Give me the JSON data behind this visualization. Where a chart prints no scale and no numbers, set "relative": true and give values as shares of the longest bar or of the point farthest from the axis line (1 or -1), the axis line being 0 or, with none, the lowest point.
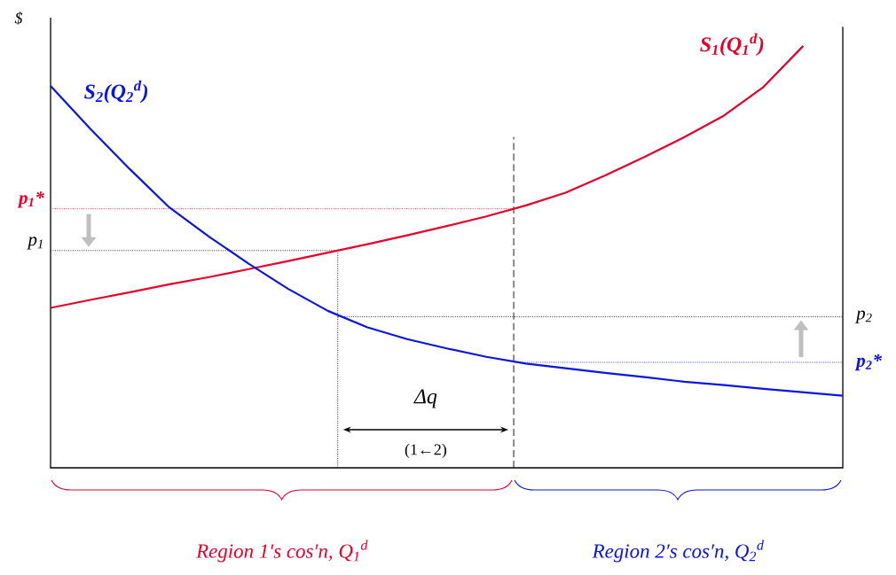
{
  "chart_data": {
    "type": "line",
    "relative": true,
    "ylabel": "$",
    "categories": [
      null,
      null,
      null,
      null,
      null,
      null,
      null,
      null,
      null,
      null,
      null,
      null,
      null,
      null,
      null,
      null,
      null,
      null,
      null,
      null,
      null
    ],
    "series": [
      {
        "name": "S$_{1}$(Q$_{1}$$^{d}$)",
        "color": "#e8002c",
        "values": [
          0.379,
          0.398,
          0.416,
          0.435,
          0.452,
          0.471,
          0.49,
          0.51,
          0.53,
          0.551,
          0.573,
          0.596,
          0.622,
          0.652,
          0.693,
          0.737,
          0.784,
          0.835,
          0.903,
          1.0,
          null
        ]
      },
      {
        "name": "S$_{2}$(Q$_{2}$$^{d}$)",
        "color": "#0a14e6",
        "values": [
          0.905,
          0.804,
          0.708,
          0.617,
          0.548,
          0.484,
          0.424,
          0.372,
          0.333,
          0.305,
          0.283,
          0.263,
          0.247,
          0.236,
          0.225,
          0.215,
          0.204,
          0.196,
          0.187,
          0.179,
          0.171
        ]
      }
    ],
    "ref_lines": [
      {
        "axis": "y",
        "value": 0.614,
        "label": "p$_{1}$*",
        "color": "#e8002c",
        "line_style": "dotted"
      },
      {
        "axis": "y",
        "value": 0.515,
        "label": "p$_{1}$",
        "color": "#000000",
        "line_style": "dotted"
      },
      {
        "axis": "y",
        "value": 0.358,
        "label": "p$_{2}$",
        "color": "#000000",
        "line_style": "dotted"
      },
      {
        "axis": "y",
        "value": 0.25,
        "label": "p$_{2}$*",
        "color": "#0a14e6",
        "line_style": "dotted"
      }
    ],
    "annotations": [
      "Δq",
      "(1←2)",
      "Region 1′s cos′n, Q$_{1}$$^{d}$",
      "Region 2′s cos′n, Q$_{2}$$^{d}$"
    ]
  }
}
